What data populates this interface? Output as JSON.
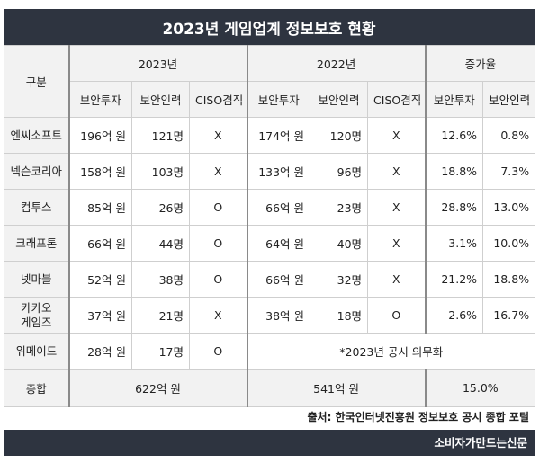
{
  "title": "2023년 게임업계 정보보호 현황",
  "header": {
    "category": "구분",
    "year_2023": "2023년",
    "year_2022": "2022년",
    "growth": "증가율",
    "col_invest": "보안투자",
    "col_staff": "보안인력",
    "col_ciso": "CISO겸직"
  },
  "rows": [
    {
      "company": "엔씨소프트",
      "company_line2": "",
      "inv23": "196억 원",
      "staff23": "121명",
      "ciso23": "X",
      "inv22": "174억 원",
      "staff22": "120명",
      "ciso22": "X",
      "g_inv": "12.6%",
      "g_staff": "0.8%"
    },
    {
      "company": "넥슨코리아",
      "company_line2": "",
      "inv23": "158억 원",
      "staff23": "103명",
      "ciso23": "X",
      "inv22": "133억 원",
      "staff22": "96명",
      "ciso22": "X",
      "g_inv": "18.8%",
      "g_staff": "7.3%"
    },
    {
      "company": "컴투스",
      "company_line2": "",
      "inv23": "85억 원",
      "staff23": "26명",
      "ciso23": "O",
      "inv22": "66억 원",
      "staff22": "23명",
      "ciso22": "X",
      "g_inv": "28.8%",
      "g_staff": "13.0%"
    },
    {
      "company": "크래프톤",
      "company_line2": "",
      "inv23": "66억 원",
      "staff23": "44명",
      "ciso23": "O",
      "inv22": "64억 원",
      "staff22": "40명",
      "ciso22": "X",
      "g_inv": "3.1%",
      "g_staff": "10.0%"
    },
    {
      "company": "넷마블",
      "company_line2": "",
      "inv23": "52억 원",
      "staff23": "38명",
      "ciso23": "O",
      "inv22": "66억 원",
      "staff22": "32명",
      "ciso22": "X",
      "g_inv": "-21.2%",
      "g_staff": "18.8%"
    },
    {
      "company": "카카오",
      "company_line2": "게임즈",
      "inv23": "37억 원",
      "staff23": "21명",
      "ciso23": "X",
      "inv22": "38억 원",
      "staff22": "18명",
      "ciso22": "O",
      "g_inv": "-2.6%",
      "g_staff": "16.7%"
    }
  ],
  "wemade": {
    "company": "위메이드",
    "inv23": "28억 원",
    "staff23": "17명",
    "ciso23": "O",
    "note": "*2023년 공시 의무화"
  },
  "total": {
    "label": "총합",
    "sum23": "622억 원",
    "sum22": "541억 원",
    "growth": "15.0%"
  },
  "source": "출처: 한국인터넷진흥원 정보보호 공시 종합 포털",
  "brand": "소비자가만드는신문"
}
